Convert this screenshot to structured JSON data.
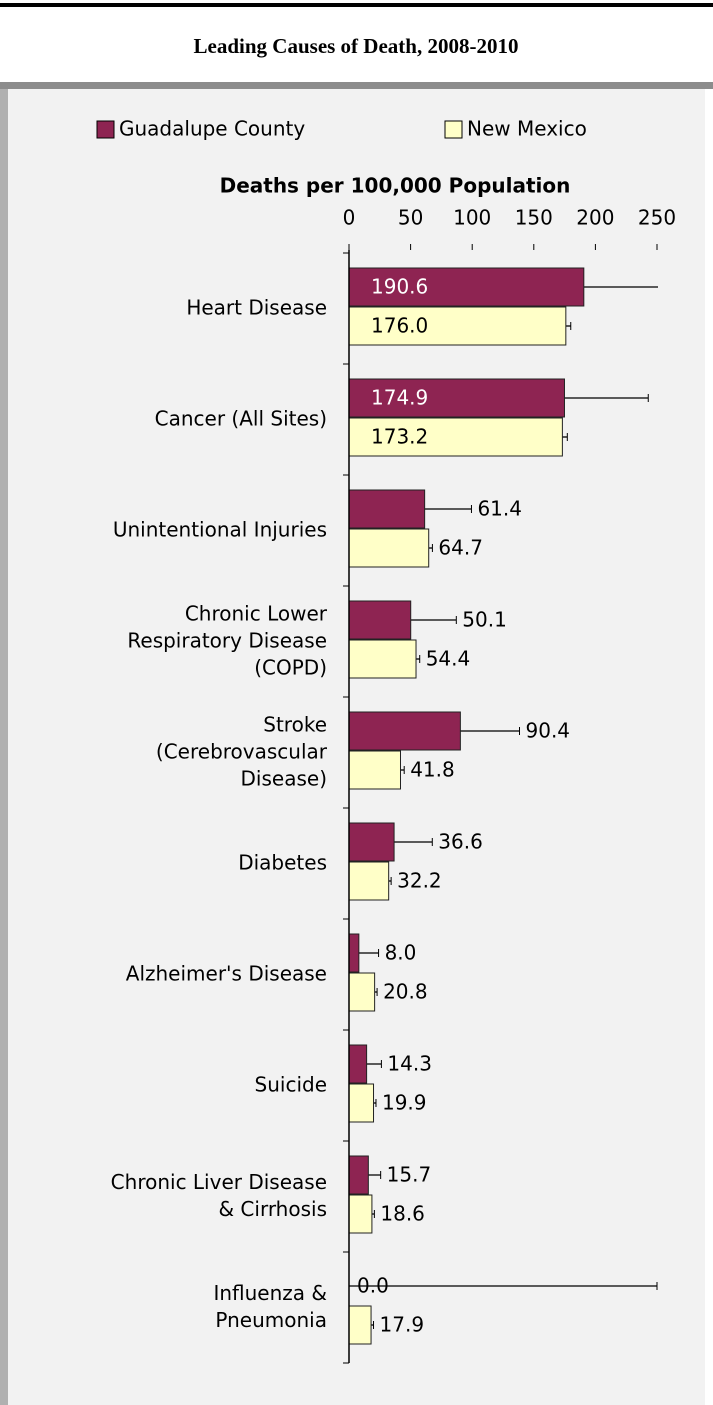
{
  "chart_data": {
    "type": "hbar",
    "title": "Leading Causes of Death, 2008-2010",
    "xlabel": "Deaths per 100,000 Population",
    "categories": [
      "Heart Disease",
      "Cancer (All Sites)",
      "Unintentional Injuries",
      "Chronic Lower\nRespiratory Disease\n(COPD)",
      "Stroke\n(Cerebrovascular\nDisease)",
      "Diabetes",
      "Alzheimer's Disease",
      "Suicide",
      "Chronic Liver Disease\n& Cirrhosis",
      "Influenza &\nPneumonia"
    ],
    "series": [
      {
        "name": "Guadalupe County",
        "color": "#8e2452",
        "values": [
          190.6,
          174.9,
          61.4,
          50.1,
          90.4,
          36.6,
          8.0,
          14.3,
          15.7,
          0.0
        ],
        "value_labels": [
          "190.6",
          "174.9",
          "61.4",
          "50.1",
          "90.4",
          "36.6",
          "8.0",
          "14.3",
          "15.7",
          "0.0"
        ],
        "errors": [
          70,
          68,
          38,
          37,
          48,
          31,
          16,
          12,
          10,
          250
        ]
      },
      {
        "name": "New Mexico",
        "color": "#ffffc8",
        "values": [
          176.0,
          173.2,
          64.7,
          54.4,
          41.8,
          32.2,
          20.8,
          19.9,
          18.6,
          17.9
        ],
        "value_labels": [
          "176.0",
          "173.2",
          "64.7",
          "54.4",
          "41.8",
          "32.2",
          "20.8",
          "19.9",
          "18.6",
          "17.9"
        ],
        "errors": [
          4,
          4,
          3,
          3,
          3,
          2,
          2,
          2,
          2,
          2
        ]
      }
    ],
    "xlim": [
      0,
      250
    ],
    "xticks": [
      0,
      50,
      100,
      150,
      200,
      250
    ]
  }
}
